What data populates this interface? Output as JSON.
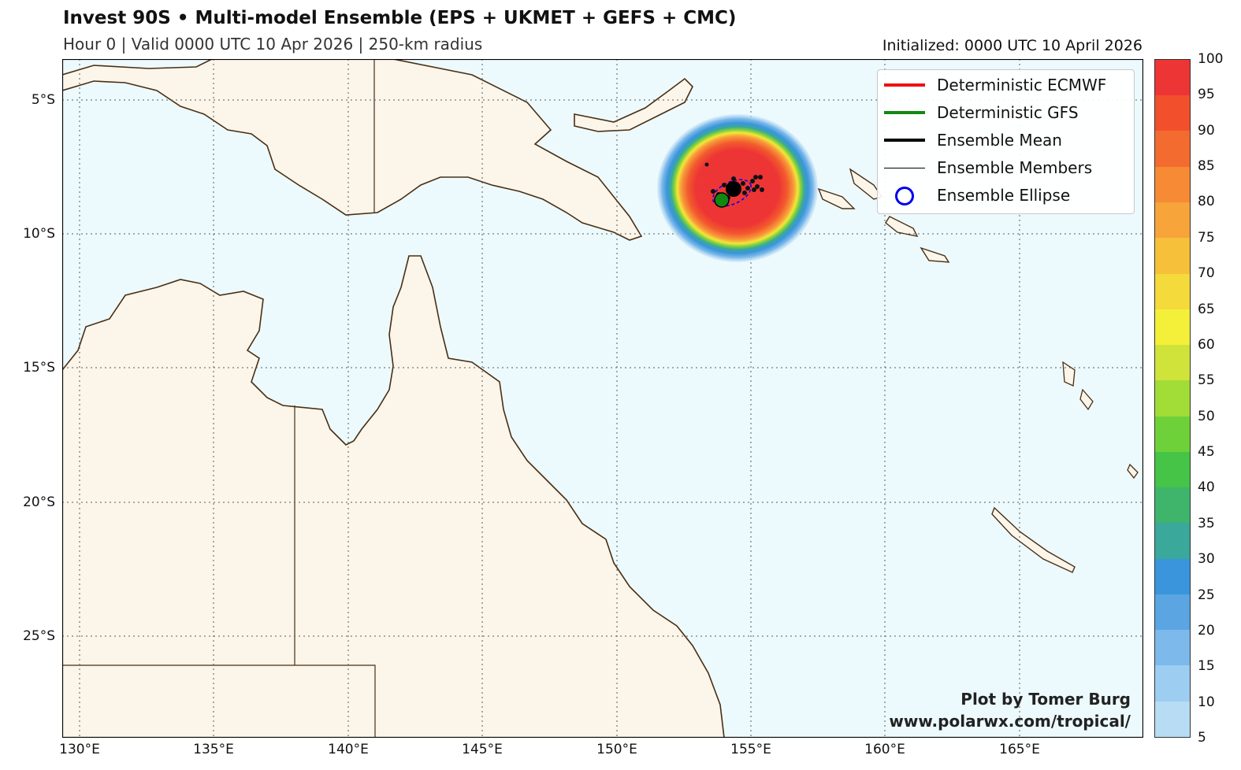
{
  "header": {
    "title": "Invest 90S • Multi-model Ensemble (EPS + UKMET + GEFS + CMC)",
    "subtitle": "Hour 0 | Valid 0000 UTC 10 Apr 2026 | 250-km radius",
    "initialized": "Initialized: 0000 UTC 10 April 2026"
  },
  "map": {
    "ocean_color": "#ecfafd",
    "land_color": "#fbf5ea",
    "coast_color": "#4a2e12",
    "lat_ticks": [
      "5°S",
      "10°S",
      "15°S",
      "20°S",
      "25°S"
    ],
    "lon_ticks": [
      "130°E",
      "135°E",
      "140°E",
      "145°E",
      "150°E",
      "155°E",
      "160°E",
      "165°E"
    ],
    "storm_center": {
      "lon": 154.6,
      "lat": -8.4
    },
    "gfs_position": {
      "lon": 153.9,
      "lat": -8.7
    },
    "ensemble_mean_position": {
      "lon": 154.4,
      "lat": -8.4
    }
  },
  "legend": {
    "items": [
      {
        "label": "Deterministic ECMWF",
        "color": "#ee1111",
        "style": "thick"
      },
      {
        "label": "Deterministic GFS",
        "color": "#118811",
        "style": "thick"
      },
      {
        "label": "Ensemble Mean",
        "color": "#000000",
        "style": "thick"
      },
      {
        "label": "Ensemble Members",
        "color": "#000000",
        "style": "thin"
      },
      {
        "label": "Ensemble Ellipse",
        "color": "#0000ee",
        "style": "circle"
      }
    ]
  },
  "colorbar": {
    "ticks": [
      "5",
      "10",
      "15",
      "20",
      "25",
      "30",
      "35",
      "40",
      "45",
      "50",
      "55",
      "60",
      "65",
      "70",
      "75",
      "80",
      "85",
      "90",
      "95",
      "100"
    ],
    "colors": [
      "#cfe8f7",
      "#b7dcf4",
      "#9dcdf0",
      "#7db9ea",
      "#5aa5e2",
      "#3a95dc",
      "#3aa89a",
      "#3fb56c",
      "#45c447",
      "#6fd13a",
      "#a2dc36",
      "#d0e33a",
      "#f4f03a",
      "#f4da3a",
      "#f6c03a",
      "#f7a43a",
      "#f68a35",
      "#f46b30",
      "#f2502d",
      "#ee3535"
    ]
  },
  "credit": {
    "line1": "Plot by Tomer Burg",
    "line2": "www.polarwx.com/tropical/"
  }
}
